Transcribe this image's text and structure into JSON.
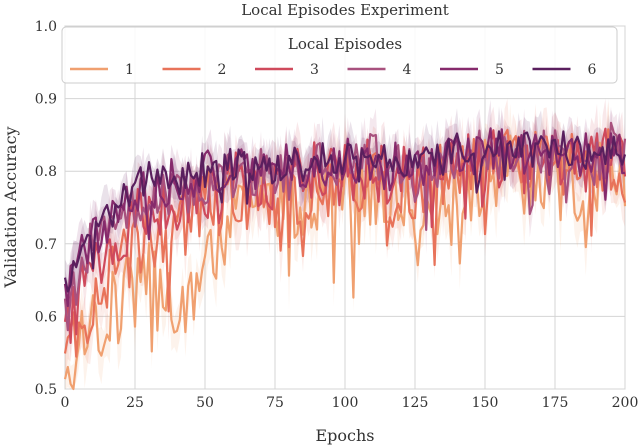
{
  "chart_data": {
    "type": "line",
    "title": "Local Episodes Experiment",
    "xlabel": "Epochs",
    "ylabel": "Validation Accuracy",
    "xlim": [
      0,
      200
    ],
    "ylim": [
      0.5,
      1.0
    ],
    "xticks": [
      0,
      25,
      50,
      75,
      100,
      125,
      150,
      175,
      200
    ],
    "yticks": [
      0.5,
      0.6,
      0.7,
      0.8,
      0.9,
      1.0
    ],
    "grid": true,
    "legend": {
      "title": "Local Episodes",
      "placement": "top",
      "columns": 6
    },
    "series_x_knots": [
      0,
      5,
      10,
      15,
      20,
      25,
      30,
      35,
      40,
      45,
      50,
      55,
      60,
      65,
      70,
      75,
      80,
      85,
      90,
      95,
      100,
      105,
      110,
      115,
      120,
      125,
      130,
      135,
      140,
      145,
      150,
      155,
      160,
      165,
      170,
      175,
      180,
      185,
      190,
      195,
      200
    ],
    "series": [
      {
        "name": "1",
        "color": "#f0a070",
        "y": [
          0.5,
          0.55,
          0.58,
          0.6,
          0.62,
          0.64,
          0.66,
          0.66,
          0.61,
          0.62,
          0.72,
          0.7,
          0.74,
          0.73,
          0.76,
          0.74,
          0.77,
          0.74,
          0.76,
          0.76,
          0.78,
          0.75,
          0.78,
          0.74,
          0.77,
          0.7,
          0.75,
          0.76,
          0.79,
          0.77,
          0.79,
          0.8,
          0.8,
          0.78,
          0.79,
          0.79,
          0.78,
          0.72,
          0.79,
          0.8,
          0.79
        ]
      },
      {
        "name": "2",
        "color": "#e8735a",
        "y": [
          0.53,
          0.58,
          0.62,
          0.64,
          0.67,
          0.7,
          0.71,
          0.72,
          0.72,
          0.73,
          0.76,
          0.75,
          0.77,
          0.76,
          0.78,
          0.77,
          0.78,
          0.77,
          0.79,
          0.78,
          0.79,
          0.78,
          0.8,
          0.76,
          0.79,
          0.76,
          0.78,
          0.79,
          0.8,
          0.8,
          0.8,
          0.81,
          0.81,
          0.8,
          0.81,
          0.8,
          0.81,
          0.79,
          0.81,
          0.81,
          0.8
        ]
      },
      {
        "name": "3",
        "color": "#cf4a5c",
        "y": [
          0.57,
          0.63,
          0.67,
          0.69,
          0.71,
          0.74,
          0.75,
          0.75,
          0.76,
          0.77,
          0.78,
          0.77,
          0.79,
          0.78,
          0.79,
          0.78,
          0.8,
          0.79,
          0.8,
          0.79,
          0.8,
          0.8,
          0.81,
          0.78,
          0.8,
          0.78,
          0.8,
          0.8,
          0.81,
          0.81,
          0.81,
          0.82,
          0.82,
          0.81,
          0.82,
          0.81,
          0.82,
          0.8,
          0.82,
          0.82,
          0.81
        ]
      },
      {
        "name": "4",
        "color": "#a8517e",
        "y": [
          0.6,
          0.66,
          0.7,
          0.72,
          0.74,
          0.76,
          0.77,
          0.77,
          0.78,
          0.78,
          0.79,
          0.78,
          0.8,
          0.79,
          0.8,
          0.79,
          0.8,
          0.8,
          0.81,
          0.8,
          0.81,
          0.8,
          0.82,
          0.79,
          0.81,
          0.79,
          0.81,
          0.81,
          0.82,
          0.82,
          0.82,
          0.82,
          0.83,
          0.82,
          0.82,
          0.82,
          0.83,
          0.81,
          0.82,
          0.83,
          0.82
        ]
      },
      {
        "name": "5",
        "color": "#862a6c",
        "y": [
          0.62,
          0.68,
          0.71,
          0.73,
          0.75,
          0.77,
          0.78,
          0.78,
          0.79,
          0.79,
          0.8,
          0.79,
          0.8,
          0.8,
          0.81,
          0.8,
          0.81,
          0.8,
          0.81,
          0.81,
          0.82,
          0.81,
          0.82,
          0.8,
          0.82,
          0.8,
          0.81,
          0.82,
          0.82,
          0.82,
          0.83,
          0.83,
          0.83,
          0.82,
          0.83,
          0.82,
          0.83,
          0.82,
          0.83,
          0.83,
          0.82
        ]
      },
      {
        "name": "6",
        "color": "#5a1f5e",
        "y": [
          0.63,
          0.69,
          0.72,
          0.74,
          0.76,
          0.78,
          0.79,
          0.79,
          0.79,
          0.8,
          0.8,
          0.8,
          0.81,
          0.8,
          0.81,
          0.8,
          0.81,
          0.81,
          0.82,
          0.81,
          0.82,
          0.81,
          0.82,
          0.81,
          0.82,
          0.81,
          0.82,
          0.82,
          0.83,
          0.82,
          0.83,
          0.83,
          0.83,
          0.83,
          0.83,
          0.83,
          0.83,
          0.82,
          0.83,
          0.83,
          0.83
        ]
      }
    ]
  }
}
